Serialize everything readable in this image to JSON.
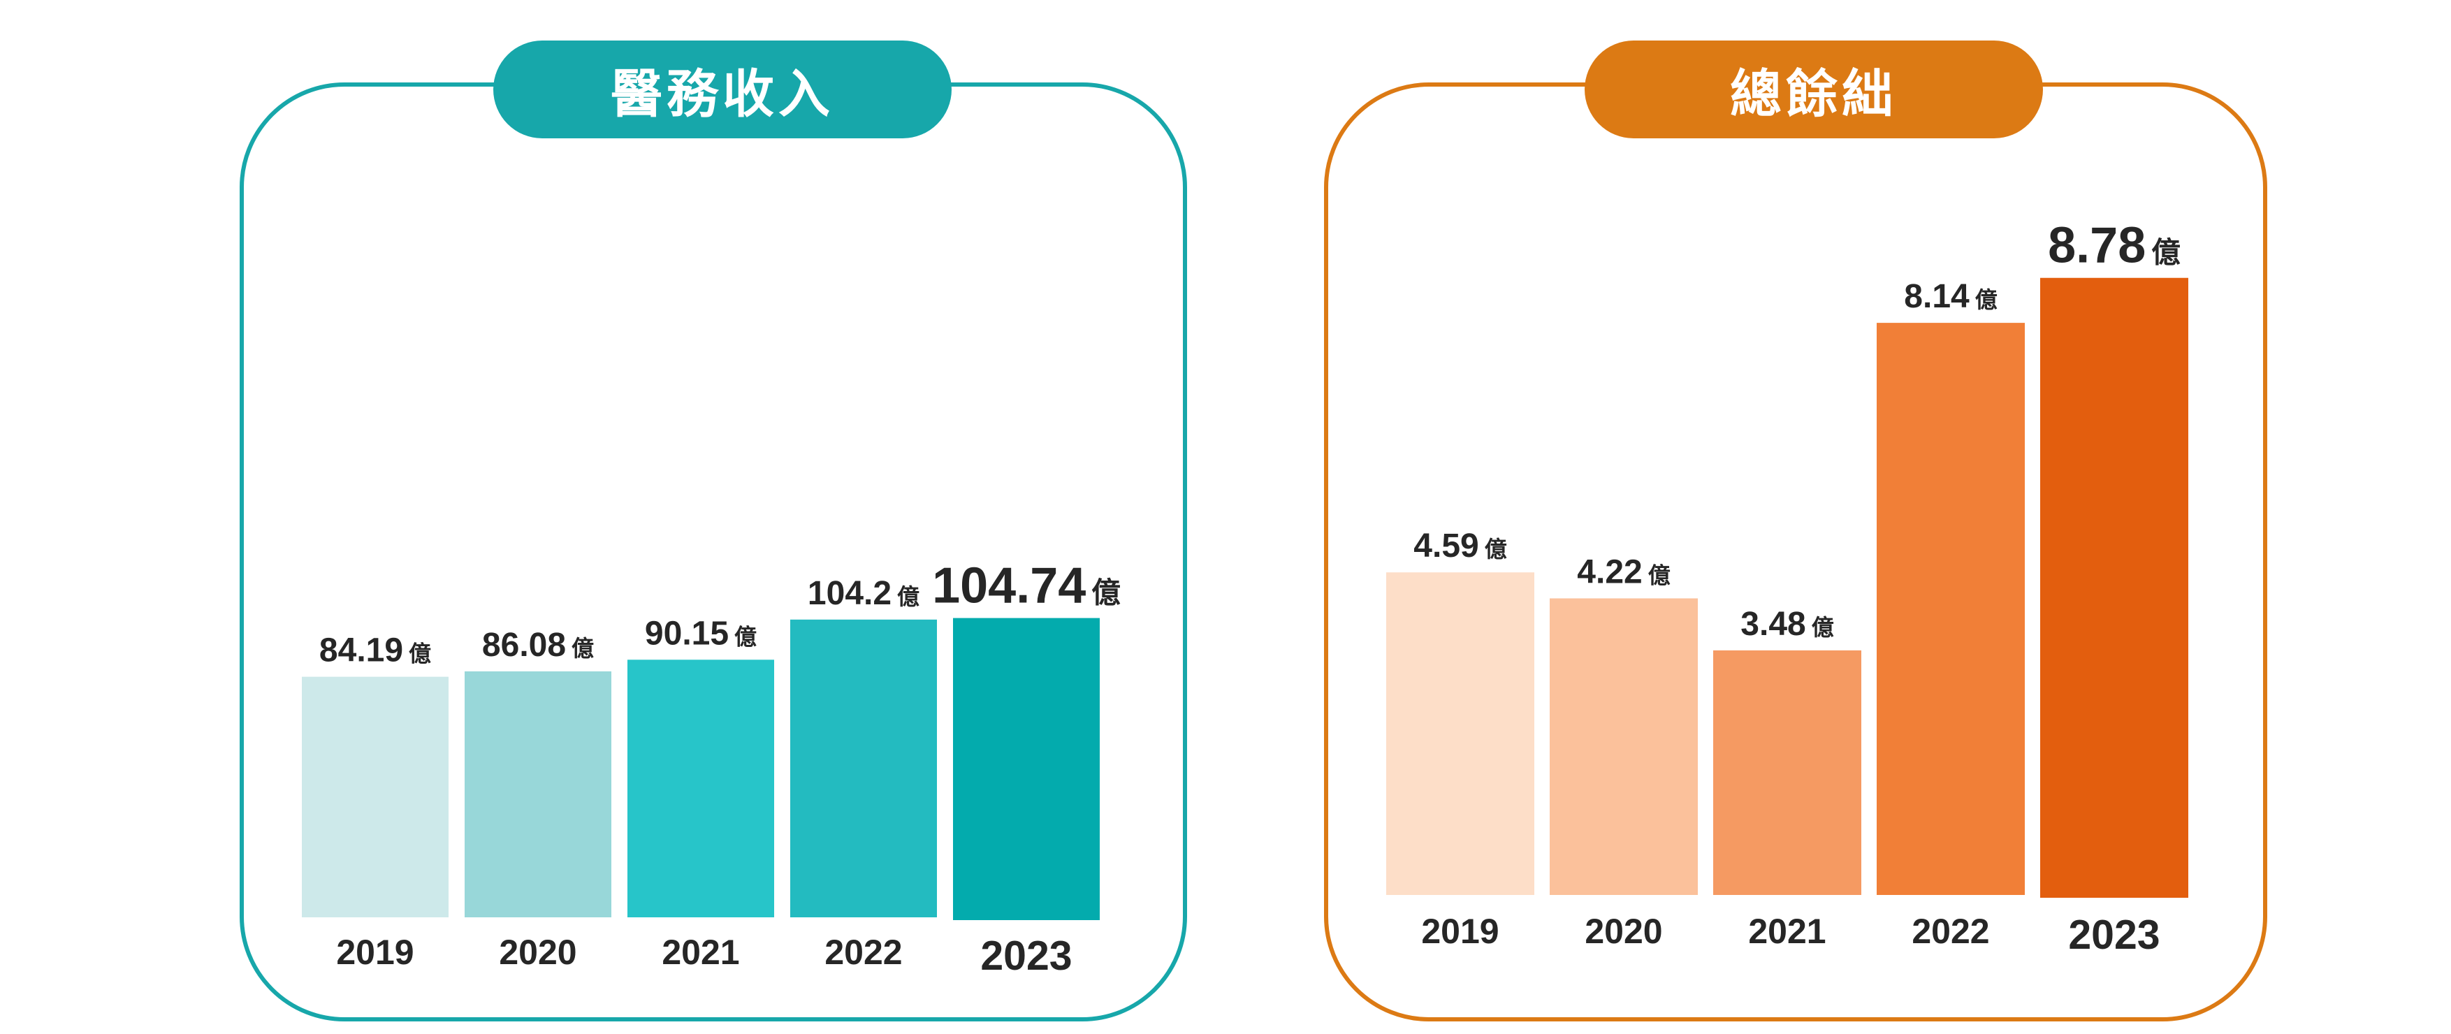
{
  "chart_data": [
    {
      "type": "bar",
      "title": "醫務收入",
      "unit": "億",
      "categories": [
        "2019",
        "2020",
        "2021",
        "2022",
        "2023"
      ],
      "values": [
        84.19,
        86.08,
        90.15,
        104.2,
        104.74
      ],
      "value_labels": [
        "84.19",
        "86.08",
        "90.15",
        "104.2",
        "104.74"
      ],
      "colors": [
        "#cde9ea",
        "#98d7d9",
        "#27c5c9",
        "#23bbc0",
        "#03abad"
      ],
      "accent": "#17a7aa",
      "highlight_category": "2023"
    },
    {
      "type": "bar",
      "title": "總餘絀",
      "unit": "億",
      "categories": [
        "2019",
        "2020",
        "2021",
        "2022",
        "2023"
      ],
      "values": [
        4.59,
        4.22,
        3.48,
        8.14,
        8.78
      ],
      "value_labels": [
        "4.59",
        "4.22",
        "3.48",
        "8.14",
        "8.78"
      ],
      "colors": [
        "#fddec8",
        "#fbc19b",
        "#f59a62",
        "#f17f37",
        "#e35e0e"
      ],
      "accent": "#dc7a14",
      "highlight_category": "2023"
    }
  ]
}
